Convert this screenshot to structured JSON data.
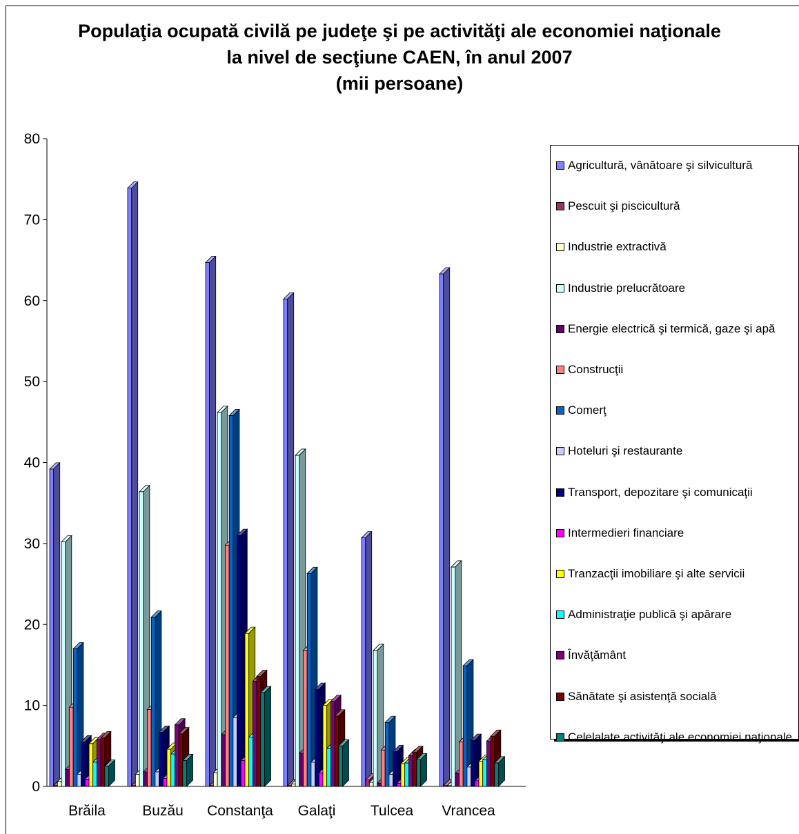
{
  "title": {
    "line1": "Populaţia ocupată civilă pe judeţe şi pe activităţi ale economiei naţionale",
    "line2": "la nivel de secţiune CAEN, în anul 2007",
    "line3": "(mii persoane)"
  },
  "chart_data": {
    "type": "bar",
    "title": "Populaţia ocupată civilă pe judeţe şi pe activităţi ale economiei naţionale la nivel de secţiune CAEN, în anul 2007 (mii persoane)",
    "xlabel": "",
    "ylabel": "",
    "ylim": [
      0,
      80
    ],
    "yticks": [
      0,
      10,
      20,
      30,
      40,
      50,
      60,
      70,
      80
    ],
    "grid": false,
    "legend_position": "right",
    "categories": [
      "Brăila",
      "Buzău",
      "Constanţa",
      "Galaţi",
      "Tulcea",
      "Vrancea"
    ],
    "series": [
      {
        "name": "Agricultură, vânătoare şi silvicultură",
        "color": "#8080ff",
        "values": [
          39.2,
          73.9,
          64.7,
          60.2,
          30.7,
          63.3
        ]
      },
      {
        "name": "Pescuit şi piscicultură",
        "color": "#993366",
        "values": [
          0.1,
          0.1,
          0.1,
          0.1,
          0.8,
          0.1
        ]
      },
      {
        "name": "Industrie extractivă",
        "color": "#ffffcc",
        "values": [
          0.6,
          1.5,
          1.7,
          0.3,
          0.5,
          0.1
        ]
      },
      {
        "name": "Industrie prelucrătoare",
        "color": "#ccffff",
        "values": [
          30.2,
          36.4,
          46.2,
          40.9,
          16.8,
          27.1
        ]
      },
      {
        "name": "Energie electrică şi termică, gaze şi apă",
        "color": "#660066",
        "values": [
          2.1,
          1.8,
          6.4,
          4.1,
          0.4,
          1.6
        ]
      },
      {
        "name": "Construcţii",
        "color": "#ff8080",
        "values": [
          9.8,
          9.5,
          29.8,
          16.8,
          4.5,
          5.5
        ]
      },
      {
        "name": "Comerţ",
        "color": "#0066cc",
        "values": [
          17.0,
          20.9,
          45.8,
          26.3,
          7.9,
          14.9
        ]
      },
      {
        "name": "Hoteluri şi restaurante",
        "color": "#ccccff",
        "values": [
          1.5,
          1.8,
          8.5,
          3.0,
          1.5,
          2.4
        ]
      },
      {
        "name": "Transport, depozitare şi comunicaţii",
        "color": "#000080",
        "values": [
          5.5,
          6.7,
          31.0,
          12.0,
          4.3,
          5.7
        ]
      },
      {
        "name": "Intermedieri financiare",
        "color": "#ff00ff",
        "values": [
          0.9,
          1.0,
          3.2,
          1.7,
          0.4,
          0.7
        ]
      },
      {
        "name": "Tranzacţii imobiliare şi alte servicii",
        "color": "#ffff00",
        "values": [
          5.3,
          4.6,
          18.9,
          10.0,
          2.8,
          3.1
        ]
      },
      {
        "name": "Administraţie publică şi apărare",
        "color": "#00ffff",
        "values": [
          3.0,
          4.0,
          6.1,
          4.7,
          2.9,
          3.3
        ]
      },
      {
        "name": "Învăţământ",
        "color": "#800080",
        "values": [
          5.8,
          7.6,
          13.0,
          10.5,
          3.8,
          5.6
        ]
      },
      {
        "name": "Sănătate şi asistenţă socială",
        "color": "#800000",
        "values": [
          6.0,
          6.5,
          13.6,
          8.7,
          4.2,
          6.2
        ]
      },
      {
        "name": "Celelalate activităţi ale economiei naţionale",
        "color": "#008080",
        "values": [
          2.5,
          3.2,
          11.6,
          5.0,
          3.3,
          2.9
        ]
      }
    ]
  }
}
